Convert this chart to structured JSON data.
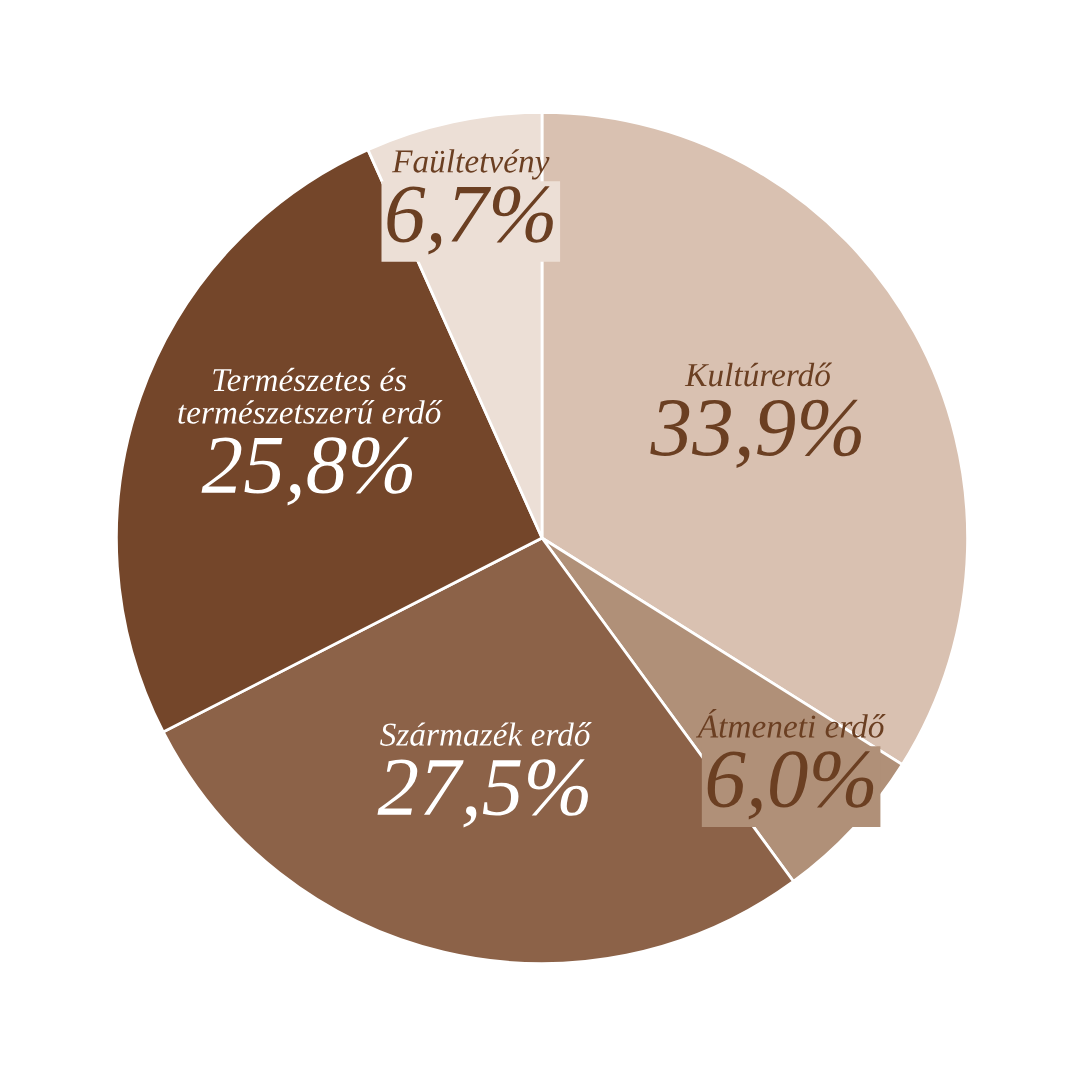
{
  "chart_data": {
    "type": "pie",
    "categories": [
      "Kultúrerdő",
      "Átmeneti erdő",
      "Származék erdő",
      "Természetes és\ntermészetszerű erdő",
      "Faültetvény"
    ],
    "values": [
      33.9,
      6.0,
      27.5,
      25.8,
      6.7
    ],
    "value_labels": [
      "33,9%",
      "6,0%",
      "27,5%",
      "25,8%",
      "6,7%"
    ],
    "colors": [
      "#d9c1b1",
      "#b09078",
      "#8c6248",
      "#74462a",
      "#ecdfd6"
    ]
  }
}
